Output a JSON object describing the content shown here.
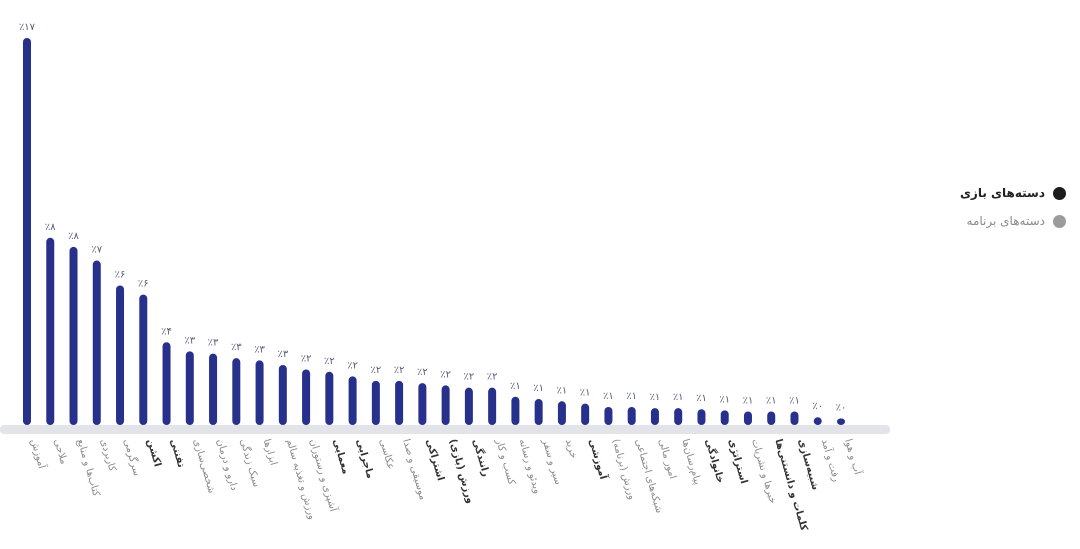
{
  "legend": {
    "items": [
      {
        "label": "دسته‌های بازی",
        "color": "#1c1c1c",
        "active": true
      },
      {
        "label": "دسته‌های برنامه",
        "color": "#9b9b9b",
        "active": false
      }
    ]
  },
  "colors": {
    "bar": "#27308a",
    "baseline": "#e3e4ea",
    "value_label": "#555a7a",
    "category_label": "#8b8b8b",
    "category_label_bold": "#333333"
  },
  "chart_data": {
    "type": "bar",
    "title": "",
    "xlabel": "",
    "ylabel": "",
    "ylim": [
      0,
      17
    ],
    "grid": false,
    "legend_placement": "right",
    "categories": [
      "آموزش",
      "ملاحی",
      "کتاب‌ها و منابع",
      "کاربردی",
      "سرگرمی",
      "اکشن",
      "تفننی",
      "شخصی‌سازی",
      "دارو و درمان",
      "سبک زندگی",
      "ابزارها",
      "ورزش و تغذیه سالم",
      "آشپزی و رستوران",
      "معمایی",
      "ماجرایی",
      "عکاسی",
      "موسیقی و صدا",
      "اشتراکی",
      "ورزش (بازی)",
      "رانندگی",
      "کسب و کار",
      "ویدئو و رسانه",
      "سیر و سفر",
      "خرید",
      "آموزشی",
      "ورزش (برنامه)",
      "شبکه‌های اجتماعی",
      "امور مالی",
      "پیام‌رسان‌ها",
      "خانوادگی",
      "استراتژی",
      "خبرها و نشریات",
      "کلمات و دانستنی‌ها",
      "شبیه‌سازی",
      "رفت و آمد",
      "آب و هوا"
    ],
    "value_labels": [
      "٪۱۷",
      "٪۸",
      "٪۸",
      "٪۷",
      "٪۶",
      "٪۶",
      "٪۴",
      "٪۳",
      "٪۳",
      "٪۳",
      "٪۳",
      "٪۳",
      "٪۲",
      "٪۲",
      "٪۲",
      "٪۲",
      "٪۲",
      "٪۲",
      "٪۲",
      "٪۲",
      "٪۲",
      "٪۱",
      "٪۱",
      "٪۱",
      "٪۱",
      "٪۱",
      "٪۱",
      "٪۱",
      "٪۱",
      "٪۱",
      "٪۱",
      "٪۱",
      "٪۱",
      "٪۱",
      "٪۰",
      "٪۰"
    ],
    "values": [
      17,
      8.2,
      7.8,
      7.2,
      6.1,
      5.7,
      3.6,
      3.2,
      3.1,
      2.9,
      2.8,
      2.6,
      2.4,
      2.3,
      2.1,
      1.9,
      1.9,
      1.8,
      1.7,
      1.6,
      1.6,
      1.2,
      1.1,
      1.0,
      0.9,
      0.75,
      0.75,
      0.7,
      0.7,
      0.65,
      0.6,
      0.55,
      0.55,
      0.55,
      0.3,
      0.25
    ],
    "bold_categories": [
      "اکشن",
      "تفننی",
      "معمایی",
      "ماجرایی",
      "اشتراکی",
      "ورزش (بازی)",
      "رانندگی",
      "آموزشی",
      "خانوادگی",
      "استراتژی",
      "کلمات و دانستنی‌ها",
      "شبیه‌سازی"
    ]
  }
}
